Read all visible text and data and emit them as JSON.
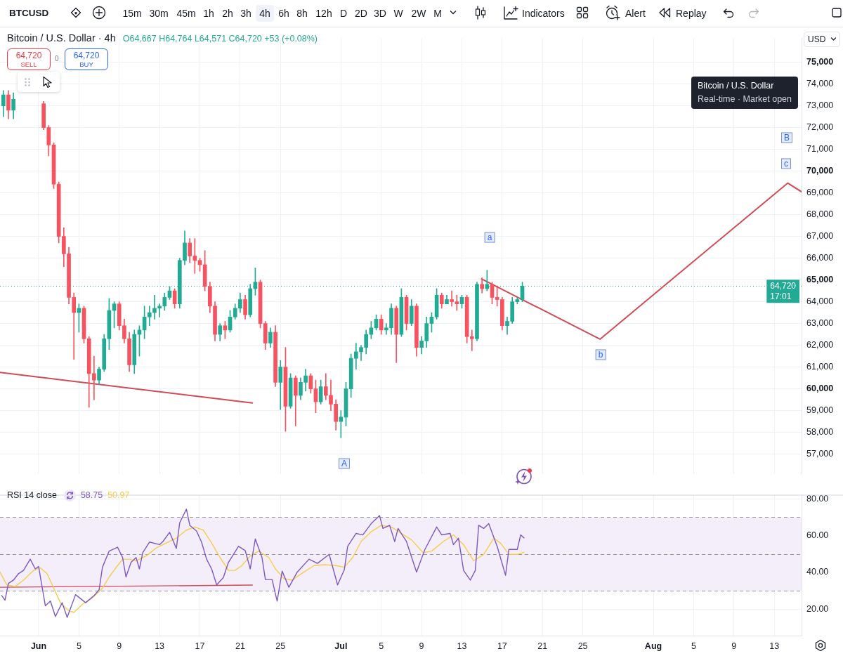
{
  "chart_data": [
    {
      "type": "candlestick",
      "title": "Bitcoin / U.S. Dollar · 4h",
      "subtitle": "O64,667 H64,764 L64,571 C64,720 +53 (+0.08%)",
      "x": [
        "--05-28T12:00",
        "--05-29T00:00",
        "--05-29T12:00",
        "--06-01T12:00",
        "--06-02T00:00",
        "--06-02T12:00",
        "--06-03T00:00",
        "--06-03T12:00",
        "--06-04T00:00",
        "--06-04T12:00",
        "--06-05T00:00",
        "--06-05T12:00",
        "--06-06T00:00",
        "--06-06T12:00",
        "--06-07T00:00",
        "--06-07T12:00",
        "--06-08T00:00",
        "--06-08T12:00",
        "--06-09T00:00",
        "--06-09T12:00",
        "--06-10T00:00",
        "--06-10T12:00",
        "--06-11T00:00",
        "--06-11T12:00",
        "--06-12T00:00",
        "--06-12T12:00",
        "--06-13T00:00",
        "--06-13T12:00",
        "--06-14T00:00",
        "--06-14T12:00",
        "--06-15T00:00",
        "--06-15T12:00",
        "--06-16T00:00",
        "--06-16T12:00",
        "--06-17T00:00",
        "--06-17T12:00",
        "--06-18T00:00",
        "--06-18T12:00",
        "--06-19T00:00",
        "--06-19T12:00",
        "--06-20T00:00",
        "--06-20T12:00",
        "--06-21T00:00",
        "--06-21T12:00",
        "--06-22T00:00",
        "--06-22T12:00",
        "--06-23T00:00",
        "--06-23T12:00",
        "--06-24T00:00",
        "--06-24T12:00",
        "--06-25T00:00",
        "--06-25T12:00",
        "--06-26T00:00",
        "--06-26T12:00",
        "--06-27T00:00",
        "--06-27T12:00",
        "--06-28T00:00",
        "--06-28T12:00",
        "--06-29T00:00",
        "--06-29T12:00",
        "--06-30T00:00",
        "--06-30T12:00",
        "--07-01T00:00",
        "--07-01T12:00",
        "--07-02T00:00",
        "--07-02T12:00",
        "--07-03T00:00",
        "--07-03T12:00",
        "--07-04T00:00",
        "--07-04T12:00",
        "--07-05T00:00",
        "--07-05T12:00",
        "--07-06T00:00",
        "--07-06T12:00",
        "--07-07T00:00",
        "--07-07T12:00",
        "--07-08T00:00",
        "--07-08T12:00",
        "--07-09T00:00",
        "--07-09T12:00",
        "--07-10T00:00",
        "--07-10T12:00",
        "--07-11T00:00",
        "--07-11T12:00",
        "--07-12T00:00",
        "--07-12T12:00",
        "--07-13T00:00",
        "--07-13T12:00",
        "--07-14T00:00",
        "--07-14T12:00",
        "--07-15T00:00",
        "--07-15T12:00",
        "--07-16T00:00",
        "--07-16T12:00",
        "--07-17T00:00",
        "--07-17T12:00",
        "--07-18T00:00",
        "--07-18T12:00",
        "--07-19T00:00"
      ],
      "ohlc": [
        [
          73000,
          73700,
          72500,
          73500
        ],
        [
          73500,
          73700,
          72400,
          72800
        ],
        [
          72800,
          73600,
          72400,
          73300
        ],
        [
          73100,
          73200,
          71900,
          72000
        ],
        [
          72000,
          72100,
          70700,
          71200
        ],
        [
          71200,
          71300,
          69200,
          69400
        ],
        [
          69400,
          69500,
          66700,
          67000
        ],
        [
          67000,
          67400,
          65600,
          66200
        ],
        [
          66200,
          66500,
          63900,
          64200
        ],
        [
          64200,
          64400,
          61350,
          63500
        ],
        [
          63500,
          63900,
          62600,
          63700
        ],
        [
          63700,
          63800,
          62100,
          62300
        ],
        [
          62300,
          62400,
          59150,
          60700
        ],
        [
          60700,
          61500,
          59500,
          60400
        ],
        [
          60400,
          61000,
          60200,
          60900
        ],
        [
          60900,
          62500,
          60800,
          62300
        ],
        [
          62300,
          64150,
          61800,
          63600
        ],
        [
          63600,
          64000,
          62800,
          63900
        ],
        [
          63900,
          64000,
          62700,
          62900
        ],
        [
          62900,
          63200,
          62100,
          62300
        ],
        [
          62300,
          62600,
          60800,
          61100
        ],
        [
          61100,
          62700,
          60700,
          62500
        ],
        [
          62500,
          62900,
          61500,
          62700
        ],
        [
          62700,
          63800,
          62300,
          63300
        ],
        [
          63300,
          63800,
          62900,
          63500
        ],
        [
          63500,
          64300,
          63200,
          63700
        ],
        [
          63700,
          63900,
          63300,
          63800
        ],
        [
          63800,
          64400,
          63600,
          64200
        ],
        [
          64200,
          64700,
          64100,
          64500
        ],
        [
          64500,
          64600,
          63700,
          63900
        ],
        [
          63900,
          66000,
          63700,
          65900
        ],
        [
          65900,
          67250,
          65700,
          66700
        ],
        [
          66700,
          66900,
          65800,
          66100
        ],
        [
          66100,
          66900,
          65300,
          65900
        ],
        [
          65900,
          66000,
          65400,
          65700
        ],
        [
          65700,
          66350,
          64500,
          64700
        ],
        [
          64700,
          64900,
          63500,
          63800
        ],
        [
          63800,
          64000,
          62200,
          62500
        ],
        [
          62500,
          63000,
          62200,
          62900
        ],
        [
          62900,
          63100,
          62300,
          62700
        ],
        [
          62700,
          63600,
          62600,
          63300
        ],
        [
          63300,
          63900,
          63200,
          63700
        ],
        [
          63700,
          64400,
          63500,
          64100
        ],
        [
          64100,
          64300,
          63200,
          63400
        ],
        [
          63400,
          64800,
          63300,
          64600
        ],
        [
          64600,
          65550,
          64300,
          64900
        ],
        [
          64900,
          65000,
          62800,
          63000
        ],
        [
          63000,
          63100,
          61800,
          62100
        ],
        [
          62100,
          62800,
          61900,
          62600
        ],
        [
          62600,
          62900,
          60100,
          60300
        ],
        [
          60300,
          61300,
          59050,
          61000
        ],
        [
          61000,
          61900,
          58050,
          59200
        ],
        [
          59200,
          60700,
          59100,
          60500
        ],
        [
          60500,
          60600,
          58300,
          59700
        ],
        [
          59700,
          60500,
          59500,
          60300
        ],
        [
          60300,
          60900,
          59900,
          60600
        ],
        [
          60600,
          60700,
          59800,
          60000
        ],
        [
          60000,
          60400,
          58900,
          59400
        ],
        [
          59400,
          60400,
          59300,
          60100
        ],
        [
          60100,
          60700,
          59500,
          59700
        ],
        [
          59700,
          60400,
          59000,
          59300
        ],
        [
          59300,
          59500,
          58100,
          58500
        ],
        [
          58500,
          59000,
          57750,
          58700
        ],
        [
          58700,
          60300,
          58300,
          60000
        ],
        [
          60000,
          61600,
          59600,
          61400
        ],
        [
          61400,
          62100,
          60900,
          61700
        ],
        [
          61700,
          62000,
          61300,
          61900
        ],
        [
          61900,
          62700,
          61600,
          62500
        ],
        [
          62500,
          63100,
          62300,
          62800
        ],
        [
          62800,
          63400,
          62700,
          63200
        ],
        [
          63200,
          63400,
          62500,
          62700
        ],
        [
          62700,
          63000,
          62500,
          62800
        ],
        [
          62800,
          63900,
          62500,
          63700
        ],
        [
          63700,
          63800,
          61200,
          62500
        ],
        [
          62500,
          64600,
          62400,
          64200
        ],
        [
          64200,
          64300,
          62700,
          63000
        ],
        [
          63000,
          64100,
          62900,
          63800
        ],
        [
          63800,
          63900,
          61500,
          61900
        ],
        [
          61900,
          62400,
          61600,
          62200
        ],
        [
          62200,
          63300,
          61900,
          63000
        ],
        [
          63000,
          63500,
          62600,
          63300
        ],
        [
          63300,
          64600,
          63200,
          64300
        ],
        [
          64300,
          64400,
          63700,
          63900
        ],
        [
          63900,
          64300,
          63900,
          64100
        ],
        [
          64100,
          64500,
          63800,
          64000
        ],
        [
          64000,
          64300,
          63600,
          63900
        ],
        [
          63900,
          64300,
          63700,
          64200
        ],
        [
          64200,
          64300,
          62100,
          62400
        ],
        [
          62400,
          62700,
          61750,
          62300
        ],
        [
          62300,
          64900,
          62200,
          64800
        ],
        [
          64800,
          65100,
          64400,
          64600
        ],
        [
          64600,
          65450,
          64500,
          64800
        ],
        [
          64800,
          64900,
          63900,
          64200
        ],
        [
          64200,
          64700,
          63800,
          64100
        ],
        [
          64100,
          64200,
          62700,
          62900
        ],
        [
          62900,
          63300,
          62500,
          63100
        ],
        [
          63100,
          64200,
          63000,
          64000
        ],
        [
          64000,
          64200,
          63900,
          64100
        ],
        [
          64100,
          64900,
          64000,
          64720
        ]
      ],
      "colors": [
        "#22ab94",
        "#f7525f",
        "#22ab94",
        "#f7525f",
        "#f7525f",
        "#f7525f",
        "#f7525f",
        "#f7525f",
        "#f7525f",
        "#f7525f",
        "#22ab94",
        "#f7525f",
        "#f7525f",
        "#f7525f",
        "#22ab94",
        "#22ab94",
        "#22ab94",
        "#22ab94",
        "#f7525f",
        "#f7525f",
        "#f7525f",
        "#22ab94",
        "#22ab94",
        "#22ab94",
        "#22ab94",
        "#22ab94",
        "#22ab94",
        "#22ab94",
        "#22ab94",
        "#f7525f",
        "#22ab94",
        "#22ab94",
        "#f7525f",
        "#f7525f",
        "#f7525f",
        "#f7525f",
        "#f7525f",
        "#f7525f",
        "#22ab94",
        "#f7525f",
        "#22ab94",
        "#22ab94",
        "#22ab94",
        "#f7525f",
        "#22ab94",
        "#22ab94",
        "#f7525f",
        "#f7525f",
        "#22ab94",
        "#f7525f",
        "#22ab94",
        "#f7525f",
        "#22ab94",
        "#f7525f",
        "#22ab94",
        "#22ab94",
        "#f7525f",
        "#f7525f",
        "#22ab94",
        "#f7525f",
        "#f7525f",
        "#f7525f",
        "#22ab94",
        "#22ab94",
        "#22ab94",
        "#22ab94",
        "#22ab94",
        "#22ab94",
        "#22ab94",
        "#22ab94",
        "#f7525f",
        "#22ab94",
        "#22ab94",
        "#f7525f",
        "#22ab94",
        "#f7525f",
        "#22ab94",
        "#f7525f",
        "#22ab94",
        "#22ab94",
        "#22ab94",
        "#22ab94",
        "#f7525f",
        "#22ab94",
        "#f7525f",
        "#f7525f",
        "#22ab94",
        "#f7525f",
        "#f7525f",
        "#22ab94",
        "#f7525f",
        "#22ab94",
        "#f7525f",
        "#f7525f",
        "#f7525f",
        "#22ab94",
        "#22ab94",
        "#22ab94",
        "#22ab94"
      ],
      "series": [
        {
          "type": "line",
          "color": "#d14b55",
          "x": [
            "--05-28T04:00",
            "--06-22T05:00"
          ],
          "values": [
            60750,
            59350
          ]
        },
        {
          "type": "line",
          "color": "#d14b55",
          "x": [
            "--07-14T23:00",
            "--07-26T17:00",
            "--08-14T08:00",
            "--08-15T17:00"
          ],
          "values": [
            65050,
            62280,
            69450,
            69050
          ]
        }
      ],
      "xlim": [
        "--05-28T04:00",
        "--08-15T17:00"
      ],
      "xticks": [
        {
          "value": "--06-01",
          "label": null
        },
        {
          "value": "--06-05",
          "label": null
        },
        {
          "value": "--06-09",
          "label": null
        },
        {
          "value": "--06-13",
          "label": null
        },
        {
          "value": "--06-17",
          "label": null
        },
        {
          "value": "--06-21",
          "label": null
        },
        {
          "value": "--06-25",
          "label": null
        },
        {
          "value": "--07-01",
          "label": null
        },
        {
          "value": "--07-05",
          "label": null
        },
        {
          "value": "--07-09",
          "label": null
        },
        {
          "value": "--07-13",
          "label": null
        },
        {
          "value": "--07-17",
          "label": null
        },
        {
          "value": "--07-21",
          "label": null
        },
        {
          "value": "--07-25",
          "label": null
        },
        {
          "value": "--08-01",
          "label": null
        },
        {
          "value": "--08-05",
          "label": null
        },
        {
          "value": "--08-09",
          "label": null
        },
        {
          "value": "--08-13",
          "label": null
        }
      ],
      "ylim": [
        56100,
        76100
      ],
      "yticks": [
        {
          "value": 57000,
          "label": "57,000"
        },
        {
          "value": 58000,
          "label": "58,000"
        },
        {
          "value": 59000,
          "label": "59,000"
        },
        {
          "value": 60000,
          "label": "60,000"
        },
        {
          "value": 61000,
          "label": "61,000"
        },
        {
          "value": 62000,
          "label": "62,000"
        },
        {
          "value": 63000,
          "label": "63,000"
        },
        {
          "value": 64000,
          "label": "64,000"
        },
        {
          "value": 65000,
          "label": "65,000"
        },
        {
          "value": 66000,
          "label": "66,000"
        },
        {
          "value": 67000,
          "label": "67,000"
        },
        {
          "value": 68000,
          "label": "68,000"
        },
        {
          "value": 69000,
          "label": "69,000"
        },
        {
          "value": 70000,
          "label": "70,000"
        },
        {
          "value": 71000,
          "label": "71,000"
        },
        {
          "value": 72000,
          "label": "72,000"
        },
        {
          "value": 73000,
          "label": "73,000"
        },
        {
          "value": 74000,
          "label": "74,000"
        },
        {
          "value": 75000,
          "label": "75,000"
        }
      ],
      "ref_lines": [
        {
          "axis": "y",
          "value": 64720,
          "label": "64,720",
          "color": "#22ab94",
          "line_style": "dotted"
        }
      ],
      "grid": true,
      "tick_labels": "y",
      "annotations": [
        "BTCUSD",
        "15m",
        "30m",
        "45m",
        "1h",
        "2h",
        "3h",
        "4h",
        "6h",
        "8h",
        "12h",
        "D",
        "2D",
        "3D",
        "W",
        "2W",
        "M",
        "Indicators",
        "Alert",
        "Replay",
        "64,720",
        "SELL",
        "0",
        "64,720",
        "BUY",
        "Bitcoin / U.S. Dollar",
        "Real-time · Market open",
        "USD",
        "17:01",
        "A",
        "a",
        "b",
        "B",
        "c"
      ]
    },
    {
      "type": "line",
      "title": "RSI 14 close",
      "series": [
        {
          "color": "#7e57c2",
          "x": [
            "--05-28T08:00",
            "--05-28T16:00",
            "--05-29T00:00",
            "--05-29T12:00",
            "--05-30T00:00",
            "--05-30T12:00",
            "--05-31T04:00",
            "--05-31T16:00",
            "--06-01T00:00",
            "--06-01T16:00",
            "--06-02T04:00",
            "--06-02T16:00",
            "--06-03T08:00",
            "--06-03T20:00",
            "--06-04T16:00",
            "--06-05T16:00",
            "--06-06T12:00",
            "--06-07T00:00",
            "--06-07T08:00",
            "--06-08T00:00",
            "--06-08T20:00",
            "--06-09T08:00",
            "--06-09T16:00",
            "--06-10T04:00",
            "--06-10T16:00",
            "--06-11T00:00",
            "--06-11T08:00",
            "--06-12T00:00",
            "--06-13T00:00",
            "--06-13T08:00",
            "--06-14T00:00",
            "--06-14T16:00",
            "--06-15T00:00",
            "--06-15T16:00",
            "--06-16T00:00",
            "--06-16T16:00",
            "--06-17T04:00",
            "--06-17T16:00",
            "--06-18T04:00",
            "--06-18T16:00",
            "--06-19T08:00",
            "--06-19T20:00",
            "--06-20T20:00",
            "--06-21T12:00",
            "--06-22T00:00",
            "--06-22T12:00",
            "--06-23T04:00",
            "--06-23T12:00",
            "--06-24T04:00",
            "--06-24T16:00",
            "--06-25T04:00",
            "--06-25T20:00",
            "--06-26T16:00",
            "--06-27T20:00",
            "--06-28T16:00",
            "--06-29T20:00",
            "--06-30T16:00",
            "--07-01T08:00",
            "--07-01T16:00",
            "--07-02T12:00",
            "--07-03T04:00",
            "--07-04T00:00",
            "--07-04T20:00",
            "--07-05T04:00",
            "--07-05T20:00",
            "--07-06T08:00",
            "--07-06T16:00",
            "--07-07T12:00",
            "--07-08T12:00",
            "--07-09T08:00",
            "--07-10T12:00",
            "--07-11T00:00",
            "--07-11T20:00",
            "--07-12T04:00",
            "--07-12T16:00",
            "--07-13T04:00",
            "--07-13T20:00",
            "--07-14T08:00",
            "--07-14T16:00",
            "--07-15T04:00",
            "--07-15T16:00",
            "--07-16T12:00",
            "--07-17T08:00",
            "--07-17T16:00",
            "--07-18T12:00",
            "--07-18T20:00",
            "--07-19T04:00"
          ],
          "values": [
            27.4,
            24.9,
            34.0,
            35.8,
            39.3,
            41.1,
            47.2,
            41.9,
            43.2,
            21.8,
            24.4,
            16.0,
            23.5,
            15.5,
            27.9,
            23.5,
            27.4,
            30.5,
            42.8,
            51.6,
            53.7,
            48.1,
            37.5,
            45.4,
            48.1,
            41.9,
            50.7,
            56.5,
            55.1,
            56.8,
            61.8,
            53.0,
            67.0,
            74.4,
            65.6,
            62.5,
            56.5,
            47.2,
            41.9,
            33.2,
            37.2,
            45.4,
            54.2,
            51.9,
            41.9,
            58.2,
            48.1,
            36.1,
            36.1,
            24.4,
            40.7,
            31.9,
            40.2,
            47.2,
            44.9,
            49.8,
            33.2,
            41.4,
            54.2,
            61.2,
            60.4,
            66.5,
            70.9,
            63.9,
            65.6,
            56.8,
            63.9,
            56.8,
            40.2,
            52.5,
            64.7,
            60.4,
            61.2,
            55.1,
            58.6,
            41.1,
            35.8,
            41.1,
            65.6,
            63.9,
            66.5,
            54.2,
            38.4,
            52.5,
            52.5,
            60.4,
            58.75
          ]
        },
        {
          "color": "#f5cd4b",
          "x": [
            "--05-28T04:00",
            "--05-28T20:00",
            "--05-29T16:00",
            "--05-30T12:00",
            "--05-31T12:00",
            "--06-01T04:00",
            "--06-01T20:00",
            "--06-02T12:00",
            "--06-03T04:00",
            "--06-04T00:00",
            "--06-04T12:00",
            "--06-05T08:00",
            "--06-06T08:00",
            "--06-07T08:00",
            "--06-08T00:00",
            "--06-08T20:00",
            "--06-09T08:00",
            "--06-10T00:00",
            "--06-10T16:00",
            "--06-11T16:00",
            "--06-12T16:00",
            "--06-13T16:00",
            "--06-14T16:00",
            "--06-15T16:00",
            "--06-16T12:00",
            "--06-17T08:00",
            "--06-18T04:00",
            "--06-19T00:00",
            "--06-19T20:00",
            "--06-20T12:00",
            "--06-21T04:00",
            "--06-22T00:00",
            "--06-22T20:00",
            "--06-23T20:00",
            "--06-24T12:00",
            "--06-25T08:00",
            "--06-26T04:00",
            "--06-27T08:00",
            "--06-28T08:00",
            "--06-29T08:00",
            "--06-30T12:00",
            "--07-01T08:00",
            "--07-02T04:00",
            "--07-03T00:00",
            "--07-04T00:00",
            "--07-05T00:00",
            "--07-06T00:00",
            "--07-07T00:00",
            "--07-08T00:00",
            "--07-09T04:00",
            "--07-10T00:00",
            "--07-11T04:00",
            "--07-12T04:00",
            "--07-13T04:00",
            "--07-14T04:00",
            "--07-15T04:00",
            "--07-16T04:00",
            "--07-16T20:00",
            "--07-17T16:00",
            "--07-18T12:00",
            "--07-19T04:00"
          ],
          "values": [
            40.2,
            33.2,
            32.3,
            35.8,
            41.1,
            42.5,
            39.3,
            31.4,
            23.5,
            19.1,
            18.2,
            22.6,
            26.1,
            31.4,
            37.5,
            43.7,
            47.2,
            47.2,
            46.3,
            48.9,
            53.3,
            56.0,
            58.6,
            63.0,
            64.7,
            63.0,
            56.0,
            48.1,
            41.1,
            41.1,
            43.7,
            48.9,
            51.6,
            48.1,
            41.9,
            36.7,
            35.8,
            40.2,
            43.7,
            44.2,
            43.7,
            42.8,
            48.1,
            56.8,
            62.1,
            65.6,
            64.7,
            61.2,
            57.7,
            50.7,
            51.6,
            56.8,
            60.4,
            55.1,
            46.3,
            49.8,
            58.6,
            56.0,
            49.8,
            49.8,
            50.97
          ]
        },
        {
          "color": "#d14b55",
          "x": [
            "--05-28T04:00",
            "--06-22T05:00"
          ],
          "values": [
            31.9,
            33.1
          ]
        }
      ],
      "xlim": [
        "--05-28T04:00",
        "--08-15T17:00"
      ],
      "xticks": [
        {
          "value": "--06-01",
          "label": "Jun"
        },
        {
          "value": "--06-05",
          "label": "5"
        },
        {
          "value": "--06-09",
          "label": "9"
        },
        {
          "value": "--06-13",
          "label": "13"
        },
        {
          "value": "--06-17",
          "label": "17"
        },
        {
          "value": "--06-21",
          "label": "21"
        },
        {
          "value": "--06-25",
          "label": "25"
        },
        {
          "value": "--07-01",
          "label": "Jul"
        },
        {
          "value": "--07-05",
          "label": "5"
        },
        {
          "value": "--07-09",
          "label": "9"
        },
        {
          "value": "--07-13",
          "label": "13"
        },
        {
          "value": "--07-17",
          "label": "17"
        },
        {
          "value": "--07-21",
          "label": "21"
        },
        {
          "value": "--07-25",
          "label": "25"
        },
        {
          "value": "--08-01",
          "label": "Aug"
        },
        {
          "value": "--08-05",
          "label": "5"
        },
        {
          "value": "--08-09",
          "label": "9"
        },
        {
          "value": "--08-13",
          "label": "13"
        }
      ],
      "ylim": [
        5.6,
        82.2
      ],
      "yticks": [
        {
          "value": 20,
          "label": "20.00"
        },
        {
          "value": 40,
          "label": "40.00"
        },
        {
          "value": 60,
          "label": "60.00"
        },
        {
          "value": 80,
          "label": "80.00"
        }
      ],
      "ref_lines": [
        {
          "axis": "y",
          "value": 70,
          "color": "#9598a1",
          "line_style": "dashed"
        },
        {
          "axis": "y",
          "value": 50,
          "color": "#9598a1",
          "line_style": "dashed"
        },
        {
          "axis": "y",
          "value": 30,
          "color": "#9598a1",
          "line_style": "dashed"
        }
      ],
      "bands": [
        {
          "axis": "y",
          "from": 30,
          "to": 70,
          "color": "#f3eefa"
        }
      ],
      "grid": true,
      "annotations": [
        "58.75",
        "50.97"
      ]
    }
  ]
}
